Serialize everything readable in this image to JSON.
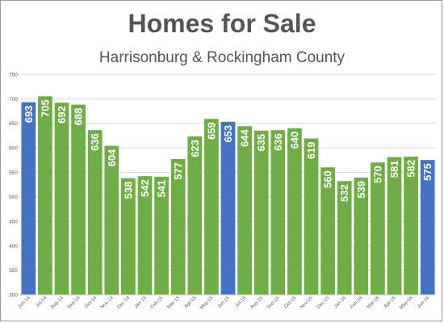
{
  "chart_data": {
    "type": "bar",
    "title": "Homes for Sale",
    "subtitle": "Harrisonburg & Rockingham County",
    "xlabel": "",
    "ylabel": "",
    "ylim": [
      300,
      750
    ],
    "yticks": [
      300,
      350,
      400,
      450,
      500,
      550,
      600,
      650,
      700,
      750
    ],
    "grid": true,
    "categories": [
      "Jun-14",
      "Jul-14",
      "Aug-14",
      "Sep-14",
      "Oct-14",
      "Nov-14",
      "Dec-14",
      "Jan-15",
      "Feb-15",
      "Mar-15",
      "Apr-15",
      "May-15",
      "Jun-15",
      "Jul-15",
      "Aug-15",
      "Sep-15",
      "Oct-15",
      "Nov-15",
      "Dec-15",
      "Jan-16",
      "Feb-16",
      "Mar-16",
      "Apr-16",
      "May-16",
      "Jun-16"
    ],
    "values": [
      693,
      705,
      692,
      688,
      636,
      604,
      538,
      542,
      541,
      577,
      623,
      659,
      653,
      644,
      635,
      636,
      640,
      619,
      560,
      532,
      539,
      570,
      581,
      582,
      575
    ],
    "highlight_categories": [
      "Jun-14",
      "Jun-15",
      "Jun-16"
    ],
    "colors": {
      "default": "#70ad47",
      "highlight": "#4472c4",
      "grid": "#d9d9d9",
      "label": "#ffffff",
      "axis_text": "#595959"
    }
  }
}
